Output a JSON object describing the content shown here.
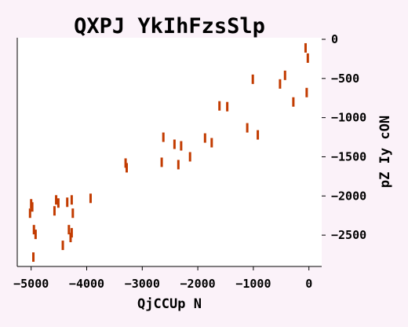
{
  "chart_data": {
    "type": "scatter",
    "title": "QXPJ YkIhFzsSlp",
    "xlabel": "QjCCUp N",
    "ylabel": "pZ Iy cON",
    "xlim": [
      -5250,
      230
    ],
    "ylim": [
      -2900,
      20
    ],
    "xticks": [
      -5000,
      -4000,
      -3000,
      -2000,
      -1000,
      0
    ],
    "yticks": [
      0,
      -500,
      -1000,
      -1500,
      -2000,
      -2500
    ],
    "xtick_labels": [
      "−5000",
      "−4000",
      "−3000",
      "−2000",
      "−1000",
      "0"
    ],
    "ytick_labels": [
      "0",
      "−500",
      "−1000",
      "−1500",
      "−2000",
      "−2500"
    ],
    "y_axis_side": "right",
    "grid": false,
    "marker": "vertical-line",
    "colors": {
      "marker": "#c23b00",
      "background": "#fbf2f9",
      "plot_background": "#ffffff",
      "axis": "#000000"
    },
    "points": [
      {
        "x": -5020,
        "y": -2220
      },
      {
        "x": -5000,
        "y": -2100
      },
      {
        "x": -4980,
        "y": -2140
      },
      {
        "x": -4960,
        "y": -2780
      },
      {
        "x": -4950,
        "y": -2430
      },
      {
        "x": -4920,
        "y": -2490
      },
      {
        "x": -4580,
        "y": -2190
      },
      {
        "x": -4550,
        "y": -2050
      },
      {
        "x": -4510,
        "y": -2090
      },
      {
        "x": -4430,
        "y": -2630
      },
      {
        "x": -4350,
        "y": -2080
      },
      {
        "x": -4320,
        "y": -2430
      },
      {
        "x": -4290,
        "y": -2530
      },
      {
        "x": -4270,
        "y": -2470
      },
      {
        "x": -4270,
        "y": -2050
      },
      {
        "x": -4250,
        "y": -2220
      },
      {
        "x": -3930,
        "y": -2030
      },
      {
        "x": -3300,
        "y": -1580
      },
      {
        "x": -3280,
        "y": -1640
      },
      {
        "x": -2650,
        "y": -1570
      },
      {
        "x": -2620,
        "y": -1250
      },
      {
        "x": -2420,
        "y": -1340
      },
      {
        "x": -2350,
        "y": -1600
      },
      {
        "x": -2300,
        "y": -1360
      },
      {
        "x": -2140,
        "y": -1500
      },
      {
        "x": -1870,
        "y": -1260
      },
      {
        "x": -1750,
        "y": -1320
      },
      {
        "x": -1610,
        "y": -850
      },
      {
        "x": -1470,
        "y": -860
      },
      {
        "x": -1110,
        "y": -1130
      },
      {
        "x": -1010,
        "y": -510
      },
      {
        "x": -920,
        "y": -1220
      },
      {
        "x": -520,
        "y": -570
      },
      {
        "x": -430,
        "y": -460
      },
      {
        "x": -280,
        "y": -800
      },
      {
        "x": -60,
        "y": -110
      },
      {
        "x": -40,
        "y": -680
      },
      {
        "x": -20,
        "y": -240
      }
    ]
  }
}
